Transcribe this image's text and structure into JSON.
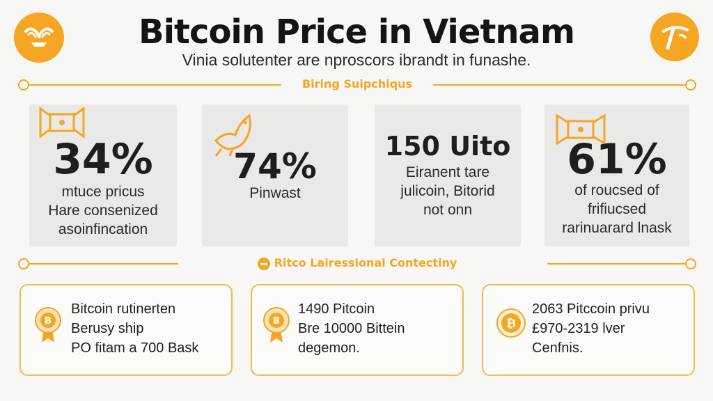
{
  "header": {
    "title": "Bitcoin Price in Vietnam",
    "subtitle": "Vinia solutenter are nproscors ibrandt in funashe."
  },
  "section1": {
    "label": "Biring Suipchiqus"
  },
  "stats": [
    {
      "value": "34%",
      "lines": [
        "mtuce pricus",
        "Hare consenized",
        "asoinfincation"
      ]
    },
    {
      "value": "74%",
      "lines": [
        "Pinwast"
      ]
    },
    {
      "value": "150 Uito",
      "lines": [
        "Eiranent tare",
        "julicoin, Bitorid",
        "not onn"
      ]
    },
    {
      "value": "61%",
      "lines": [
        "of roucsed of",
        "frifiucsed",
        "rarinuarard lnask"
      ]
    }
  ],
  "section2": {
    "label": "Ritco Lairessional Contectiny"
  },
  "info_cards": [
    {
      "lines": [
        "Bitcoin rutinerten",
        "Berusy ship",
        "PO fitam a 700 Bask"
      ]
    },
    {
      "lines": [
        "1490 Pitcoin",
        "Bre 10000 Bittein",
        "degemon."
      ]
    },
    {
      "lines": [
        "2063 Pitccoin privu",
        "£970-2319 lver",
        "Cenfnis."
      ]
    }
  ],
  "colors": {
    "accent": "#f5a623",
    "card_bg": "#e9e9e7",
    "text": "#1c1c1c"
  },
  "icons": [
    "ram-logo-icon",
    "pickaxe-logo-icon",
    "ribbon-icon",
    "bird-icon",
    "coin-medal-icon",
    "bitcoin-coin-icon"
  ]
}
